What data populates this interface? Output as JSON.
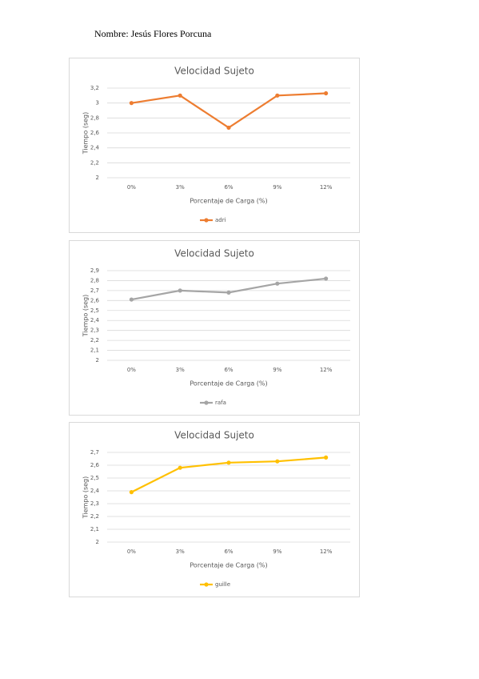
{
  "header": {
    "name": "Nombre: Jesús Flores Porcuna"
  },
  "chart_data": [
    {
      "type": "line",
      "title": "Velocidad Sujeto",
      "y_label": "Tiempo (seg)",
      "x_label": "Porcentaje de Carga (%)",
      "categories": [
        "0%",
        "3%",
        "6%",
        "9%",
        "12%"
      ],
      "series": [
        {
          "name": "adri",
          "color": "#ed7d31",
          "values": [
            3.0,
            3.1,
            2.67,
            3.1,
            3.13
          ]
        }
      ],
      "ylim": [
        2,
        3.2
      ],
      "yticks": [
        {
          "value": 2,
          "label": "2"
        },
        {
          "value": 2.2,
          "label": "2,2"
        },
        {
          "value": 2.4,
          "label": "2,4"
        },
        {
          "value": 2.6,
          "label": "2,6"
        },
        {
          "value": 2.8,
          "label": "2,8"
        },
        {
          "value": 3,
          "label": "3"
        },
        {
          "value": 3.2,
          "label": "3,2"
        }
      ],
      "grid": true
    },
    {
      "type": "line",
      "title": "Velocidad Sujeto",
      "y_label": "Tiempo (seg)",
      "x_label": "Porcentaje de Carga (%)",
      "categories": [
        "0%",
        "3%",
        "6%",
        "9%",
        "12%"
      ],
      "series": [
        {
          "name": "rafa",
          "color": "#a5a5a5",
          "values": [
            2.61,
            2.7,
            2.68,
            2.77,
            2.82
          ]
        }
      ],
      "ylim": [
        2,
        2.9
      ],
      "yticks": [
        {
          "value": 2,
          "label": "2"
        },
        {
          "value": 2.1,
          "label": "2,1"
        },
        {
          "value": 2.2,
          "label": "2,2"
        },
        {
          "value": 2.3,
          "label": "2,3"
        },
        {
          "value": 2.4,
          "label": "2,4"
        },
        {
          "value": 2.5,
          "label": "2,5"
        },
        {
          "value": 2.6,
          "label": "2,6"
        },
        {
          "value": 2.7,
          "label": "2,7"
        },
        {
          "value": 2.8,
          "label": "2,8"
        },
        {
          "value": 2.9,
          "label": "2,9"
        }
      ],
      "grid": true
    },
    {
      "type": "line",
      "title": "Velocidad Sujeto",
      "y_label": "Tiempo (seg)",
      "x_label": "Porcentaje de Carga (%)",
      "categories": [
        "0%",
        "3%",
        "6%",
        "9%",
        "12%"
      ],
      "series": [
        {
          "name": "guille",
          "color": "#ffc000",
          "values": [
            2.39,
            2.58,
            2.62,
            2.63,
            2.66
          ]
        }
      ],
      "ylim": [
        2,
        2.7
      ],
      "yticks": [
        {
          "value": 2,
          "label": "2"
        },
        {
          "value": 2.1,
          "label": "2,1"
        },
        {
          "value": 2.2,
          "label": "2,2"
        },
        {
          "value": 2.3,
          "label": "2,3"
        },
        {
          "value": 2.4,
          "label": "2,4"
        },
        {
          "value": 2.5,
          "label": "2,5"
        },
        {
          "value": 2.6,
          "label": "2,6"
        },
        {
          "value": 2.7,
          "label": "2,7"
        }
      ],
      "grid": true
    }
  ]
}
